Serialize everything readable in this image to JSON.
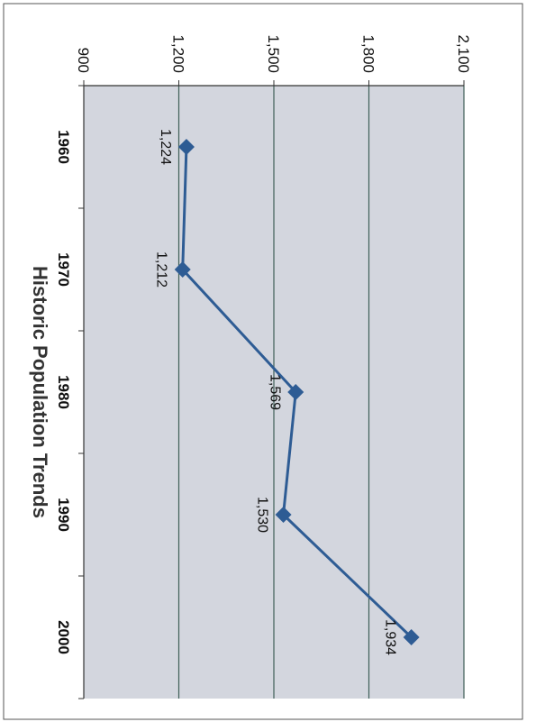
{
  "chart_data": {
    "type": "line",
    "title": "Historic Population Trends",
    "categories": [
      "1960",
      "1970",
      "1980",
      "1990",
      "2000"
    ],
    "series": [
      {
        "values": [
          1224,
          1212,
          1569,
          1530,
          1934
        ],
        "color": "#2e5c94"
      }
    ],
    "data_labels": [
      "1,224",
      "1,212",
      "1,569",
      "1,530",
      "1,934"
    ],
    "ylim": [
      900,
      2100
    ],
    "yticks": [
      900,
      1200,
      1500,
      1800,
      2100
    ],
    "ytick_labels": [
      "900",
      "1,200",
      "1,500",
      "1,800",
      "2,100"
    ],
    "grid": true,
    "legend": "none",
    "orientation": "rotated 90 degrees clockwise",
    "plot_background": "#d3d6de",
    "gridline_color": "#3f5f58",
    "marker": "diamond"
  }
}
